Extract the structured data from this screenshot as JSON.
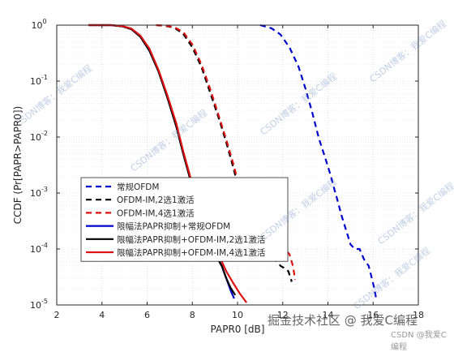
{
  "chart_data": {
    "type": "line",
    "title": "",
    "xlabel": "PAPR0 [dB]",
    "ylabel": "CCDF (Pr[PAPR>PAPR0])",
    "xlim": [
      2,
      18
    ],
    "ylim": [
      1e-05,
      1
    ],
    "yscale": "log",
    "grid": true,
    "minor_grid": true,
    "legend_position": "lower-left",
    "x_ticks": [
      "2",
      "4",
      "6",
      "8",
      "10",
      "12",
      "14",
      "16",
      "18"
    ],
    "y_ticks": [
      {
        "value": 1e-05,
        "base": "10",
        "exp": "-5"
      },
      {
        "value": 0.0001,
        "base": "10",
        "exp": "-4"
      },
      {
        "value": 0.001,
        "base": "10",
        "exp": "-3"
      },
      {
        "value": 0.01,
        "base": "10",
        "exp": "-2"
      },
      {
        "value": 0.1,
        "base": "10",
        "exp": "-1"
      },
      {
        "value": 1,
        "base": "10",
        "exp": "0"
      }
    ],
    "series": [
      {
        "name": "常规OFDM",
        "color": "#0000cc",
        "dash": "dashed",
        "x": [
          11,
          11.5,
          11.9,
          12.3,
          12.7,
          13.0,
          13.3,
          13.6,
          13.9,
          14.1,
          14.3,
          14.4,
          14.6,
          14.8,
          15.0,
          15.2,
          15.4,
          15.6,
          15.8,
          15.9,
          16.05,
          16.15
        ],
        "y": [
          1,
          0.88,
          0.68,
          0.4,
          0.18,
          0.075,
          0.028,
          0.0095,
          0.004,
          0.0022,
          0.0011,
          0.0008,
          0.0004,
          0.00022,
          0.00012,
          0.0001,
          0.0001,
          6.5e-05,
          5e-05,
          3.5e-05,
          2e-05,
          1.2e-05
        ]
      },
      {
        "name": "OFDM-IM,2选1激活",
        "color": "#000000",
        "dash": "dashed",
        "x": [
          6.4,
          6.8,
          7.2,
          7.6,
          8.0,
          8.4,
          8.8,
          9.2,
          9.5,
          9.8,
          10.1,
          10.4,
          10.7,
          11.0,
          11.3,
          11.6,
          11.9,
          12.1,
          12.25,
          12.35,
          12.4
        ],
        "y": [
          1,
          0.97,
          0.9,
          0.7,
          0.4,
          0.18,
          0.06,
          0.02,
          0.008,
          0.003,
          0.001,
          0.0005,
          0.00025,
          0.00012,
          9e-05,
          7e-05,
          5e-05,
          4.5e-05,
          4e-05,
          3e-05,
          2.6e-05
        ]
      },
      {
        "name": "OFDM-IM,4选1激活",
        "color": "#dd1111",
        "dash": "dashed",
        "x": [
          6.4,
          6.8,
          7.2,
          7.6,
          8.0,
          8.4,
          8.8,
          9.2,
          9.5,
          9.8,
          10.1,
          10.4,
          10.7,
          11.0,
          11.3,
          11.6,
          11.9,
          12.1,
          12.3,
          12.45,
          12.55
        ],
        "y": [
          1,
          0.98,
          0.92,
          0.75,
          0.45,
          0.2,
          0.07,
          0.022,
          0.009,
          0.0035,
          0.0012,
          0.0006,
          0.0003,
          0.00015,
          0.00011,
          0.0001,
          0.0001,
          0.0001,
          8e-05,
          5e-05,
          2.8e-05
        ]
      },
      {
        "name": "限幅法PAPR抑制+常规OFDM",
        "color": "#0000cc",
        "dash": "solid",
        "x": [
          3.4,
          4.4,
          4.9,
          5.3,
          5.7,
          6.1,
          6.5,
          6.9,
          7.3,
          7.6,
          7.9,
          8.1,
          8.3,
          8.5,
          8.7,
          8.9,
          9.1,
          9.3,
          9.5,
          9.7,
          9.85
        ],
        "y": [
          1,
          1,
          0.95,
          0.85,
          0.62,
          0.35,
          0.15,
          0.05,
          0.015,
          0.005,
          0.0018,
          0.0009,
          0.00045,
          0.00025,
          0.00015,
          0.0001,
          7e-05,
          5e-05,
          3e-05,
          1.8e-05,
          1.3e-05
        ]
      },
      {
        "name": "限幅法PAPR抑制+OFDM-IM,2选1激活",
        "color": "#000000",
        "dash": "solid",
        "x": [
          3.4,
          4.4,
          4.9,
          5.3,
          5.7,
          6.1,
          6.5,
          6.9,
          7.3,
          7.6,
          7.9,
          8.1,
          8.3,
          8.5,
          8.7,
          8.9,
          9.1,
          9.3,
          9.5,
          9.7,
          9.9
        ],
        "y": [
          1,
          1,
          0.95,
          0.85,
          0.62,
          0.35,
          0.15,
          0.05,
          0.015,
          0.005,
          0.0018,
          0.0009,
          0.00045,
          0.00025,
          0.00015,
          0.0001,
          7e-05,
          5e-05,
          3e-05,
          2e-05,
          1.5e-05
        ]
      },
      {
        "name": "限幅法PAPR抑制+OFDM-IM,4选1激活",
        "color": "#dd1111",
        "dash": "solid",
        "x": [
          3.4,
          4.4,
          4.9,
          5.3,
          5.7,
          6.1,
          6.5,
          6.9,
          7.3,
          7.6,
          7.9,
          8.1,
          8.3,
          8.5,
          8.7,
          8.9,
          9.1,
          9.3,
          9.5,
          9.8,
          10.1,
          10.4
        ],
        "y": [
          1,
          1,
          0.96,
          0.87,
          0.65,
          0.38,
          0.16,
          0.055,
          0.017,
          0.0055,
          0.002,
          0.001,
          0.0005,
          0.00028,
          0.00017,
          0.00011,
          8e-05,
          6e-05,
          4e-05,
          2.5e-05,
          1.6e-05,
          1.1e-05
        ]
      }
    ]
  },
  "watermark": {
    "main": "掘金技术社区 @ 我爱C编程",
    "sub": "CSDN @我爱C编程",
    "diagonal": "CSDN博客：我爱C编程"
  }
}
